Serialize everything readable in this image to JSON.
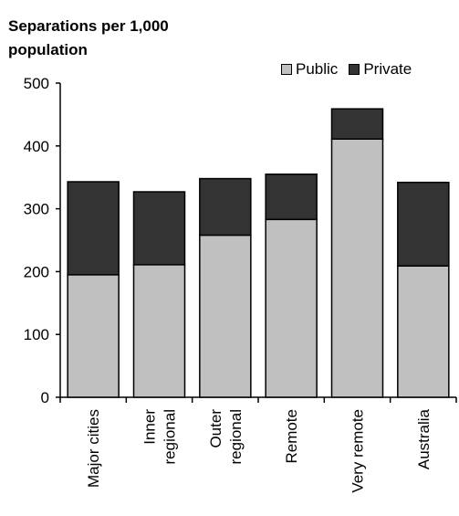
{
  "chart_data": {
    "type": "bar",
    "stacked": true,
    "ylabel_lines": [
      "Separations per 1,000",
      "population"
    ],
    "categories": [
      [
        "Major cities"
      ],
      [
        "Inner",
        "regional"
      ],
      [
        "Outer",
        "regional"
      ],
      [
        "Remote"
      ],
      [
        "Very remote"
      ],
      [
        "Australia"
      ]
    ],
    "series": [
      {
        "name": "Public",
        "color": "#c0c0c0",
        "values": [
          195,
          211,
          258,
          283,
          411,
          209
        ]
      },
      {
        "name": "Private",
        "color": "#333333",
        "values": [
          148,
          116,
          90,
          72,
          48,
          133
        ]
      }
    ],
    "ylim": [
      0,
      500
    ],
    "yticks": [
      0,
      100,
      200,
      300,
      400,
      500
    ],
    "grid": false,
    "legend_position": "top-right"
  }
}
